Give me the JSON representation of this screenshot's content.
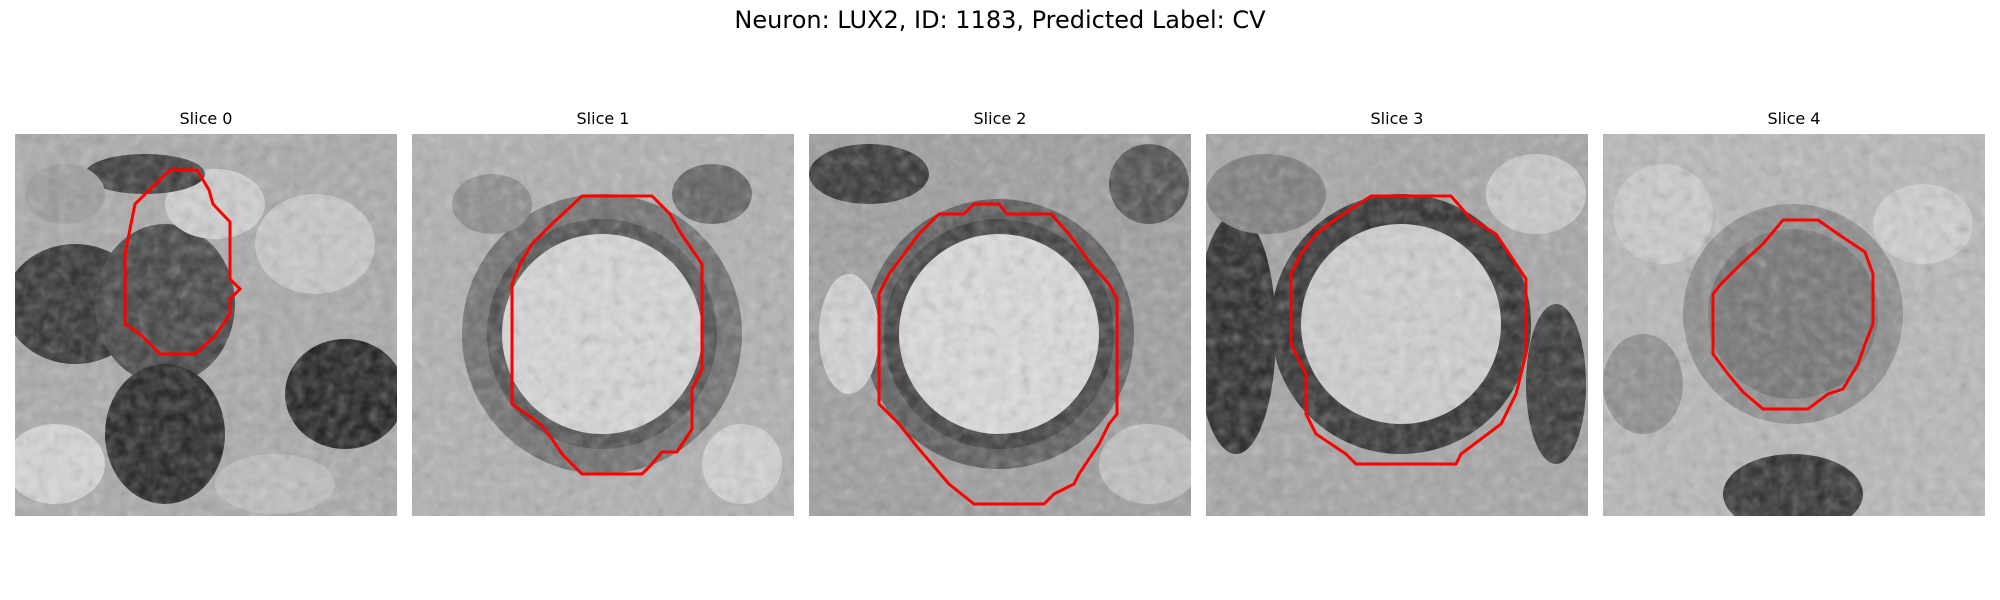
{
  "figure": {
    "suptitle": "Neuron: LUX2, ID: 1183, Predicted Label: CV"
  },
  "panels": [
    {
      "title": "Slice 0",
      "contour_color": "#ff0000"
    },
    {
      "title": "Slice 1",
      "contour_color": "#ff0000"
    },
    {
      "title": "Slice 2",
      "contour_color": "#ff0000"
    },
    {
      "title": "Slice 3",
      "contour_color": "#ff0000"
    },
    {
      "title": "Slice 4",
      "contour_color": "#ff0000"
    }
  ]
}
